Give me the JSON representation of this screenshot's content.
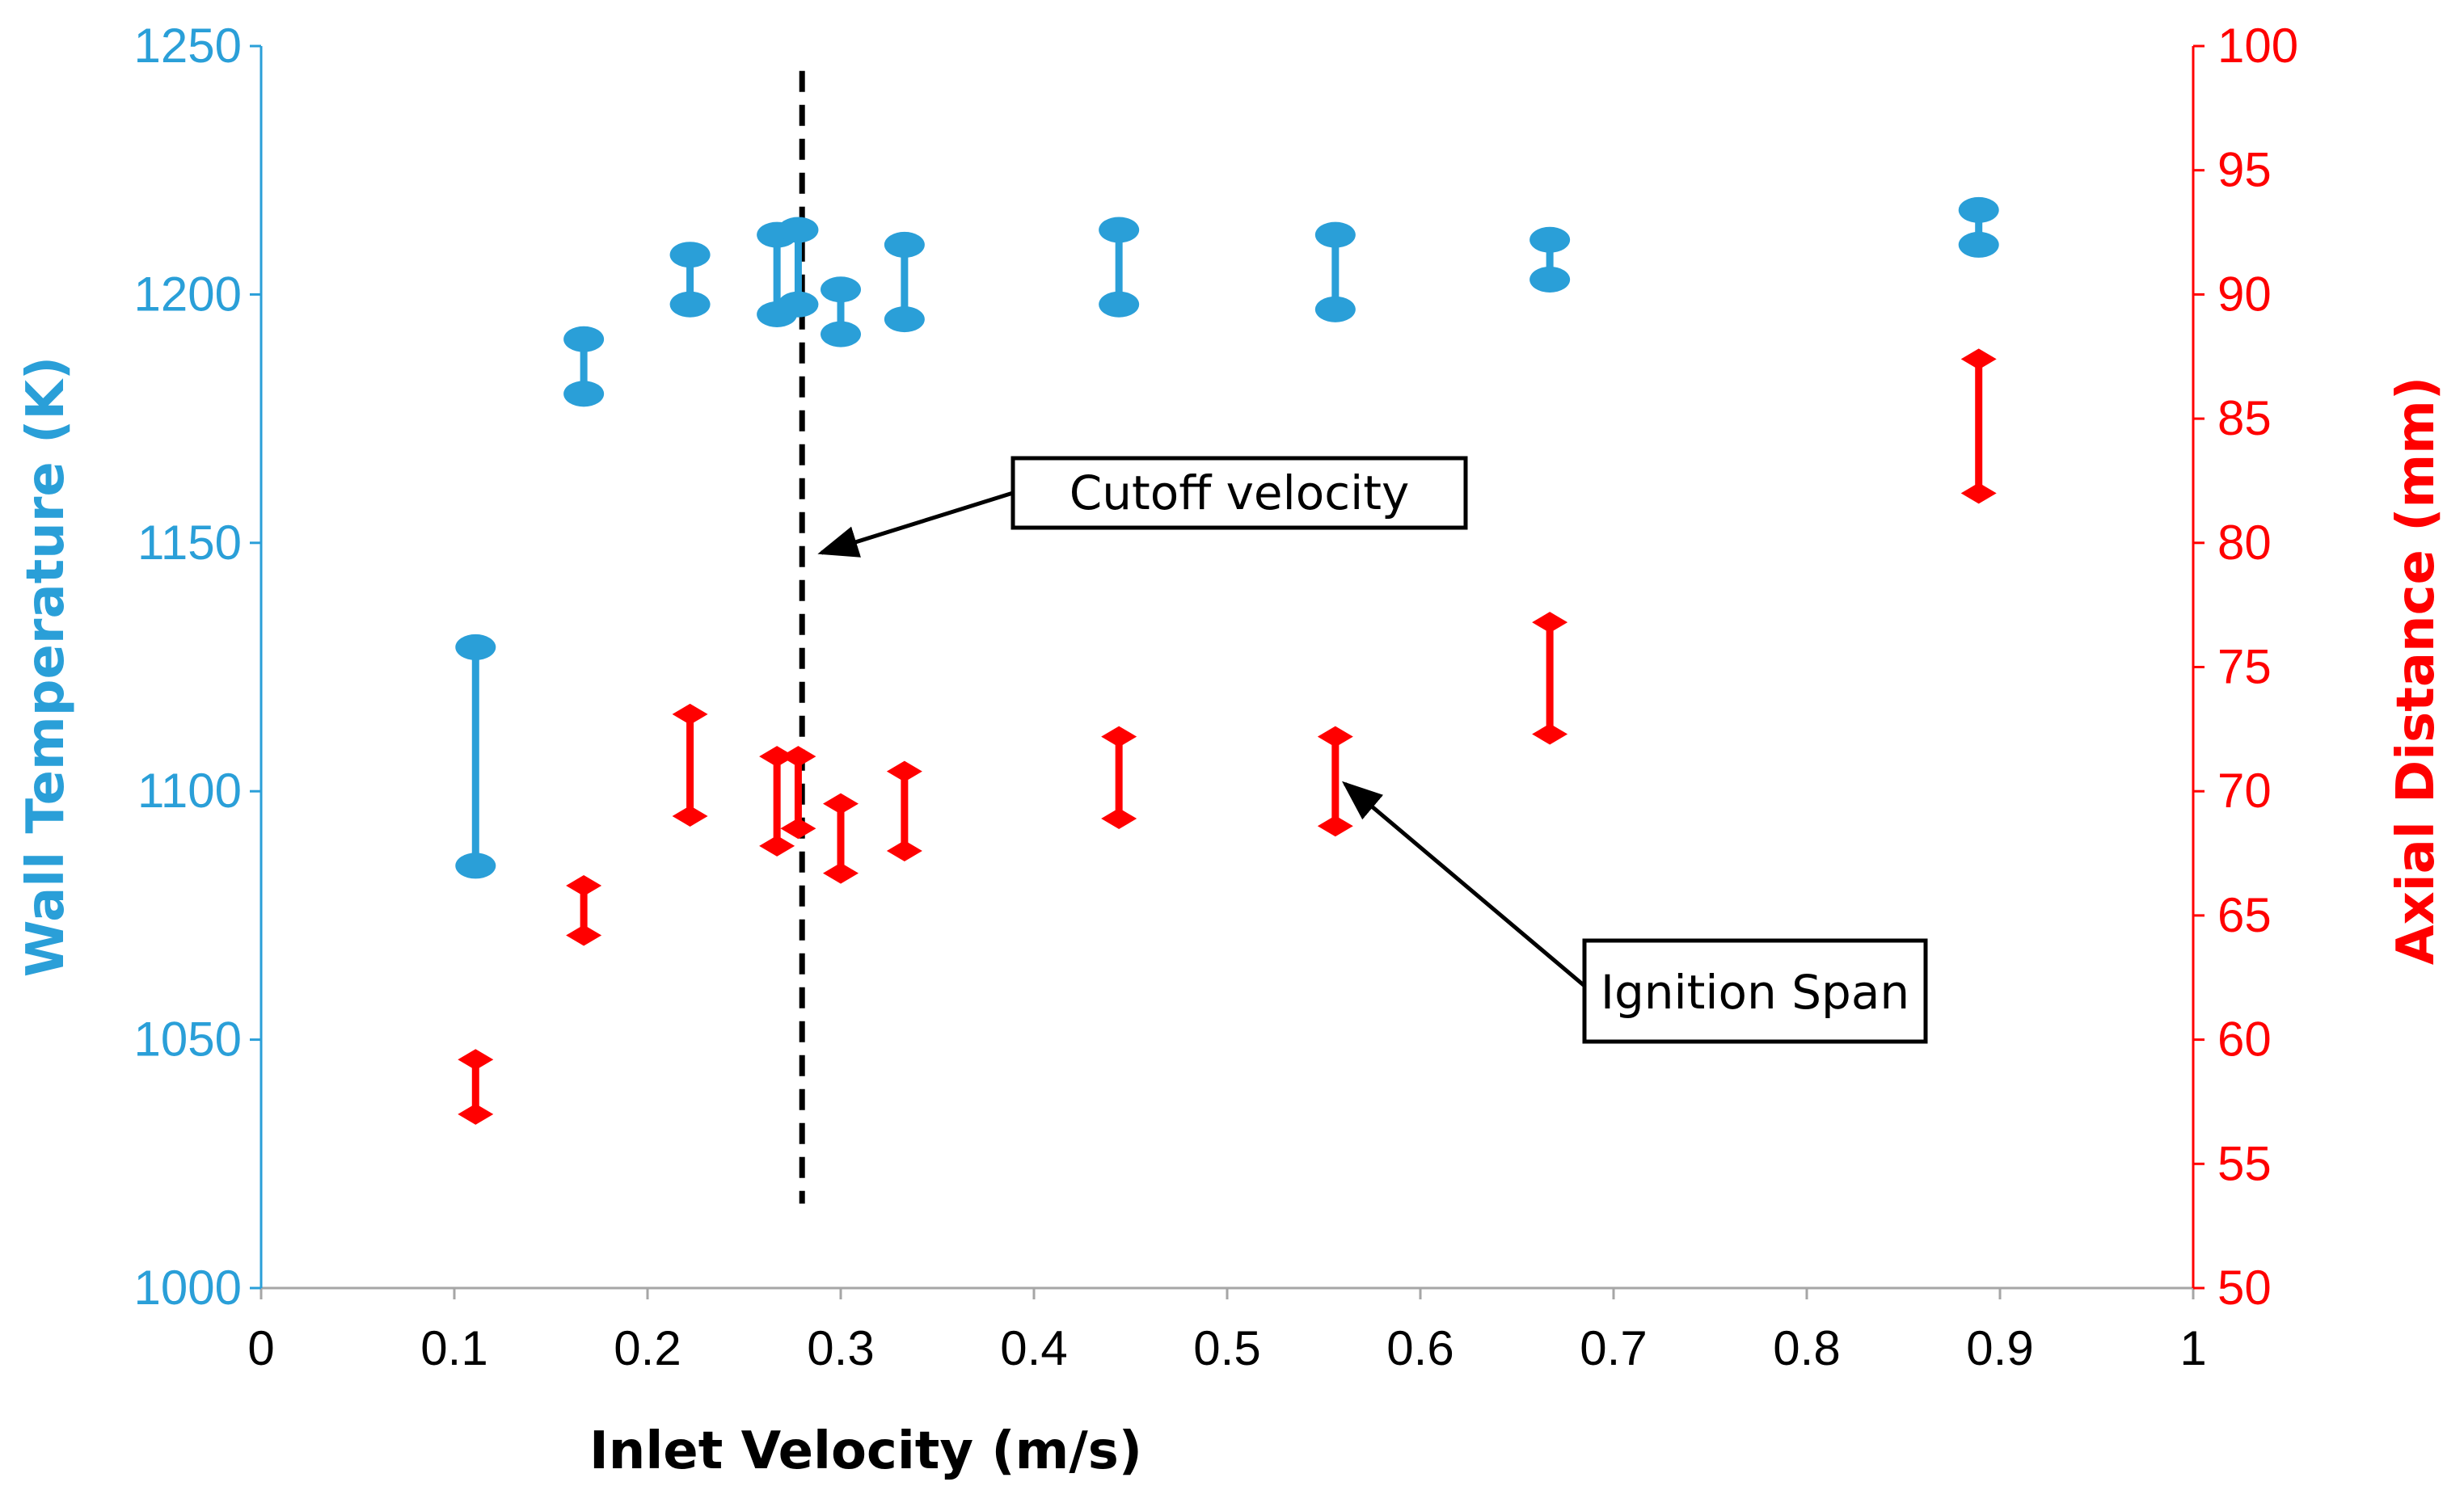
{
  "chart_data": {
    "type": "range-bar",
    "xlabel": "Inlet Velocity (m/s)",
    "ylabel_left": "Wall Temperature (K)",
    "ylabel_right": "Axial Distance (mm)",
    "xlim": [
      0,
      1
    ],
    "ylim_left": [
      1000,
      1250
    ],
    "ylim_right": [
      50,
      100
    ],
    "x_ticks": [
      "0",
      "0.1",
      "0.2",
      "0.3",
      "0.4",
      "0.5",
      "0.6",
      "0.7",
      "0.8",
      "0.9",
      "1"
    ],
    "y_left_ticks": [
      "1000",
      "1050",
      "1100",
      "1150",
      "1200",
      "1250"
    ],
    "y_right_ticks": [
      "50",
      "55",
      "60",
      "65",
      "70",
      "75",
      "80",
      "85",
      "90",
      "95",
      "100"
    ],
    "colors": {
      "left_axis": "#2A9FD8",
      "right_axis": "#FF0000",
      "temperature": "#2A9FD8",
      "distance": "#FF0000"
    },
    "series": [
      {
        "name": "Wall Temperature",
        "axis": "left",
        "marker": "ellipse",
        "points": [
          {
            "x": 0.111,
            "low": 1085,
            "high": 1129
          },
          {
            "x": 0.167,
            "low": 1180,
            "high": 1191
          },
          {
            "x": 0.222,
            "low": 1198,
            "high": 1208
          },
          {
            "x": 0.267,
            "low": 1196,
            "high": 1212
          },
          {
            "x": 0.278,
            "low": 1198,
            "high": 1213
          },
          {
            "x": 0.3,
            "low": 1192,
            "high": 1201
          },
          {
            "x": 0.333,
            "low": 1195,
            "high": 1210
          },
          {
            "x": 0.444,
            "low": 1198,
            "high": 1213
          },
          {
            "x": 0.556,
            "low": 1197,
            "high": 1212
          },
          {
            "x": 0.667,
            "low": 1203,
            "high": 1211
          },
          {
            "x": 0.889,
            "low": 1210,
            "high": 1217
          }
        ]
      },
      {
        "name": "Axial Distance",
        "axis": "right",
        "marker": "diamond",
        "points": [
          {
            "x": 0.111,
            "low": 57.0,
            "high": 59.2
          },
          {
            "x": 0.167,
            "low": 64.2,
            "high": 66.2
          },
          {
            "x": 0.222,
            "low": 69.0,
            "high": 73.1
          },
          {
            "x": 0.267,
            "low": 67.8,
            "high": 71.4
          },
          {
            "x": 0.278,
            "low": 68.5,
            "high": 71.4
          },
          {
            "x": 0.3,
            "low": 66.7,
            "high": 69.5
          },
          {
            "x": 0.333,
            "low": 67.6,
            "high": 70.8
          },
          {
            "x": 0.444,
            "low": 68.9,
            "high": 72.2
          },
          {
            "x": 0.556,
            "low": 68.6,
            "high": 72.2
          },
          {
            "x": 0.667,
            "low": 72.3,
            "high": 76.8
          },
          {
            "x": 0.889,
            "low": 82.0,
            "high": 87.4
          }
        ]
      }
    ],
    "reference_line": {
      "x": 0.28,
      "style": "dashed",
      "from_left": 1017,
      "to_left": 1245
    },
    "annotations": [
      {
        "text": "Cutoff velocity",
        "target_x": 0.29,
        "target_left": 1148
      },
      {
        "text": "Ignition Span",
        "target_x": 0.561,
        "target_right": 70.3
      }
    ]
  }
}
